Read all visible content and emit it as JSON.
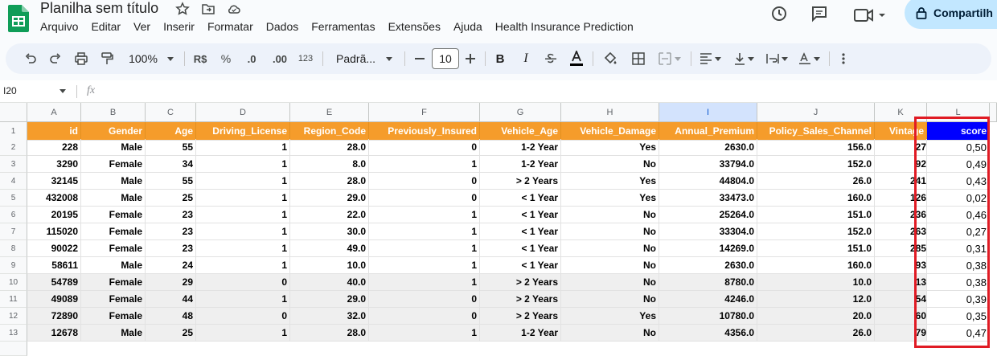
{
  "app": {
    "title": "Planilha sem título",
    "share_label": "Compartilh"
  },
  "menu": [
    "Arquivo",
    "Editar",
    "Ver",
    "Inserir",
    "Formatar",
    "Dados",
    "Ferramentas",
    "Extensões",
    "Ajuda",
    "Health Insurance Prediction"
  ],
  "toolbar": {
    "zoom": "100%",
    "currency": "R$",
    "percent": "%",
    "dec_less": ".0",
    "dec_more": ".00",
    "format123": "123",
    "font": "Padrã...",
    "font_size": "10"
  },
  "formula_bar": {
    "cell_ref": "I20",
    "fx": "fx"
  },
  "columns": [
    "A",
    "B",
    "C",
    "D",
    "E",
    "F",
    "G",
    "H",
    "I",
    "J",
    "K",
    "L"
  ],
  "rows": [
    "1",
    "2",
    "3",
    "4",
    "5",
    "6",
    "7",
    "8",
    "9",
    "10",
    "11",
    "12",
    "13"
  ],
  "headers": [
    "id",
    "Gender",
    "Age",
    "Driving_License",
    "Region_Code",
    "Previously_Insured",
    "Vehicle_Age",
    "Vehicle_Damage",
    "Annual_Premium",
    "Policy_Sales_Channel",
    "Vintage",
    "score"
  ],
  "data": [
    [
      "228",
      "Male",
      "55",
      "1",
      "28.0",
      "0",
      "1-2 Year",
      "Yes",
      "2630.0",
      "156.0",
      "27",
      "0,50"
    ],
    [
      "3290",
      "Female",
      "34",
      "1",
      "8.0",
      "1",
      "1-2 Year",
      "No",
      "33794.0",
      "152.0",
      "92",
      "0,49"
    ],
    [
      "32145",
      "Male",
      "55",
      "1",
      "28.0",
      "0",
      "> 2 Years",
      "Yes",
      "44804.0",
      "26.0",
      "241",
      "0,43"
    ],
    [
      "432008",
      "Male",
      "25",
      "1",
      "29.0",
      "0",
      "< 1 Year",
      "Yes",
      "33473.0",
      "160.0",
      "126",
      "0,02"
    ],
    [
      "20195",
      "Female",
      "23",
      "1",
      "22.0",
      "1",
      "< 1 Year",
      "No",
      "25264.0",
      "151.0",
      "236",
      "0,46"
    ],
    [
      "115020",
      "Female",
      "23",
      "1",
      "30.0",
      "1",
      "< 1 Year",
      "No",
      "33304.0",
      "152.0",
      "263",
      "0,27"
    ],
    [
      "90022",
      "Female",
      "23",
      "1",
      "49.0",
      "1",
      "< 1 Year",
      "No",
      "14269.0",
      "151.0",
      "285",
      "0,31"
    ],
    [
      "58611",
      "Male",
      "24",
      "1",
      "10.0",
      "1",
      "< 1 Year",
      "No",
      "2630.0",
      "160.0",
      "93",
      "0,38"
    ],
    [
      "54789",
      "Female",
      "29",
      "0",
      "40.0",
      "1",
      "> 2 Years",
      "No",
      "8780.0",
      "10.0",
      "13",
      "0,38"
    ],
    [
      "49089",
      "Female",
      "44",
      "1",
      "29.0",
      "0",
      "> 2 Years",
      "No",
      "4246.0",
      "12.0",
      "54",
      "0,39"
    ],
    [
      "72890",
      "Female",
      "48",
      "0",
      "32.0",
      "0",
      "> 2 Years",
      "Yes",
      "10780.0",
      "20.0",
      "60",
      "0,35"
    ],
    [
      "12678",
      "Male",
      "25",
      "1",
      "28.0",
      "1",
      "1-2 Year",
      "No",
      "4356.0",
      "26.0",
      "79",
      "0,47"
    ]
  ],
  "colors": {
    "header_bg": "#f59c2b",
    "score_header_bg": "#0000ff",
    "highlight": "#e01b24"
  }
}
